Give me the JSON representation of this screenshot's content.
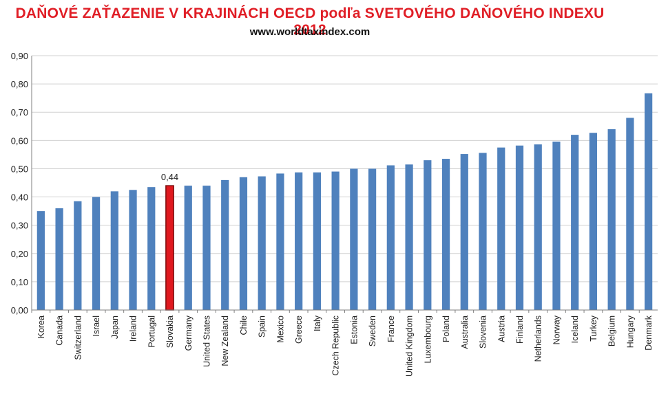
{
  "header": {
    "title": "DAŇOVÉ ZAŤAZENIE V KRAJINÁCH OECD podľa SVETOVÉHO DAŇOVÉHO INDEXU 2012",
    "subtitle": "www.worldtaxindex.com"
  },
  "colors": {
    "bar": "#4f81bd",
    "highlight_bar": "#e0191f",
    "highlight_border": "#7a0b0b",
    "grid": "#d0d0d0",
    "axis": "#7f7f7f",
    "title": "#e01e26"
  },
  "chart_data": {
    "type": "bar",
    "title": "DAŇOVÉ ZAŤAZENIE V KRAJINÁCH OECD podľa SVETOVÉHO DAŇOVÉHO INDEXU 2012",
    "subtitle": "www.worldtaxindex.com",
    "xlabel": "",
    "ylabel": "",
    "ylim": [
      0,
      0.9
    ],
    "ytick_labels": [
      "0,00",
      "0,10",
      "0,20",
      "0,30",
      "0,40",
      "0,50",
      "0,60",
      "0,70",
      "0,80",
      "0,90"
    ],
    "grid": true,
    "legend": "none",
    "categories": [
      "Korea",
      "Canada",
      "Switzerland",
      "Israel",
      "Japan",
      "Ireland",
      "Portugal",
      "Slovakia",
      "Germany",
      "United States",
      "New Zealand",
      "Chile",
      "Spain",
      "Mexico",
      "Greece",
      "Italy",
      "Czech Republic",
      "Estonia",
      "Sweden",
      "France",
      "United Kingdom",
      "Luxembourg",
      "Poland",
      "Australia",
      "Slovenia",
      "Austria",
      "Finland",
      "Netherlands",
      "Norway",
      "Iceland",
      "Turkey",
      "Belgium",
      "Hungary",
      "Denmark"
    ],
    "values": [
      0.35,
      0.36,
      0.385,
      0.4,
      0.42,
      0.425,
      0.435,
      0.44,
      0.44,
      0.44,
      0.46,
      0.47,
      0.473,
      0.483,
      0.487,
      0.487,
      0.49,
      0.5,
      0.5,
      0.512,
      0.515,
      0.53,
      0.535,
      0.552,
      0.556,
      0.575,
      0.582,
      0.586,
      0.596,
      0.62,
      0.627,
      0.64,
      0.68,
      0.767
    ],
    "highlight": {
      "category": "Slovakia",
      "label": "0,44"
    }
  }
}
